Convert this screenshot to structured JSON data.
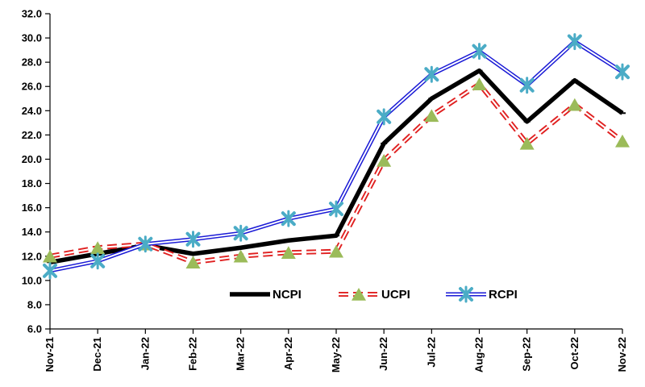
{
  "chart_data": {
    "type": "line",
    "title": "",
    "xlabel": "",
    "ylabel": "",
    "categories": [
      "Nov-21",
      "Dec-21",
      "Jan-22",
      "Feb-22",
      "Mar-22",
      "Apr-22",
      "May-22",
      "Jun-22",
      "Jul-22",
      "Aug-22",
      "Sep-22",
      "Oct-22",
      "Nov-22"
    ],
    "ylim": [
      6.0,
      32.0
    ],
    "yticks": [
      "6.0",
      "8.0",
      "10.0",
      "12.0",
      "14.0",
      "16.0",
      "18.0",
      "20.0",
      "22.0",
      "24.0",
      "26.0",
      "28.0",
      "30.0",
      "32.0"
    ],
    "grid": false,
    "legend_position": "bottom-center",
    "series": [
      {
        "name": "NCPI",
        "color": "#000000",
        "values": [
          11.5,
          12.2,
          12.9,
          12.2,
          12.7,
          13.3,
          13.7,
          21.3,
          25.0,
          27.3,
          23.1,
          26.5,
          23.8
        ]
      },
      {
        "name": "UCPI",
        "color": "#e02020",
        "marker_color": "#9bbb59",
        "values": [
          12.0,
          12.7,
          13.0,
          11.5,
          12.0,
          12.3,
          12.4,
          19.9,
          23.6,
          26.2,
          21.3,
          24.5,
          21.5
        ]
      },
      {
        "name": "RCPI",
        "color": "#1a1ad6",
        "marker_color": "#4bacc6",
        "values": [
          10.8,
          11.6,
          13.0,
          13.4,
          13.9,
          15.1,
          15.9,
          23.5,
          27.0,
          28.9,
          26.1,
          29.7,
          27.2
        ]
      }
    ]
  }
}
